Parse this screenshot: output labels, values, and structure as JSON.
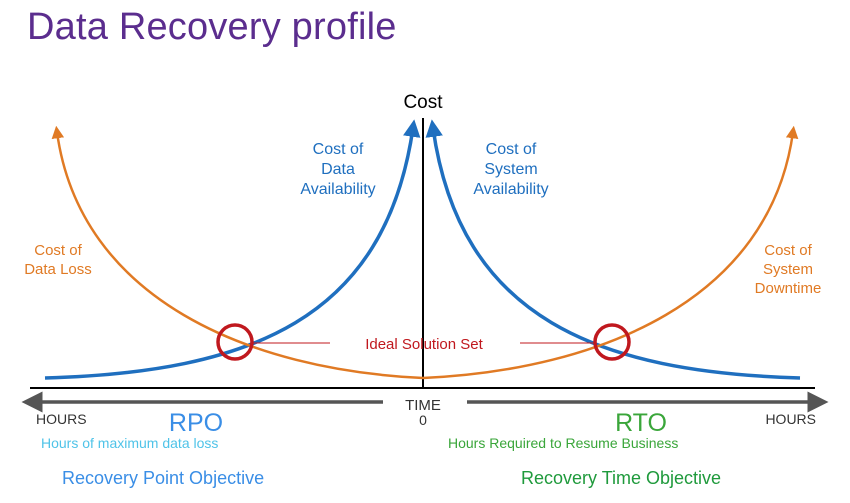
{
  "title": "Data Recovery profile",
  "axis": {
    "y_label": "Cost",
    "x_label": "TIME",
    "x_zero": "0",
    "left_end": "HOURS",
    "right_end": "HOURS"
  },
  "curves": {
    "data_availability": [
      "Cost of",
      "Data",
      "Availability"
    ],
    "system_availability": [
      "Cost of",
      "System",
      "Availability"
    ],
    "data_loss": [
      "Cost of",
      "Data Loss"
    ],
    "system_downtime": [
      "Cost of",
      "System",
      "Downtime"
    ]
  },
  "ideal_label": "Ideal Solution Set",
  "rpo": {
    "abbr": "RPO",
    "desc": "Hours of maximum data  loss",
    "full": "Recovery Point Objective"
  },
  "rto": {
    "abbr": "RTO",
    "desc": "Hours Required to Resume Business",
    "full": "Recovery Time Objective"
  },
  "colors": {
    "title": "#5b2d8e",
    "blue": "#1f6fbf",
    "orange": "#e07a24",
    "red": "#c0181e",
    "axis": "#000000",
    "gray": "#555555",
    "rpo_desc": "#4fc3e8",
    "rpo_full": "#3a8ee6",
    "green": "#3aa63a",
    "green_full": "#1f9a3c"
  }
}
